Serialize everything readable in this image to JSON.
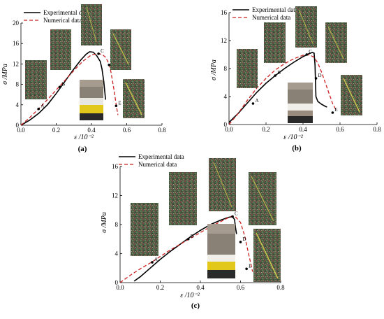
{
  "chart_data": [
    {
      "type": "line",
      "panel_label": "(a)",
      "xlabel": "ε /10⁻²",
      "ylabel": "σ /MPa",
      "xlim": [
        0,
        0.8
      ],
      "ylim": [
        0,
        20
      ],
      "x_ticks": [
        "0.0",
        "0.2",
        "0.4",
        "0.6",
        "0.8"
      ],
      "y_ticks": [
        "0",
        "4",
        "8",
        "12",
        "16",
        "20"
      ],
      "legend": "top-left",
      "series": [
        {
          "name": "Experimental data",
          "color": "#000000",
          "style": "solid",
          "x": [
            0.0,
            0.05,
            0.1,
            0.15,
            0.2,
            0.25,
            0.3,
            0.34,
            0.37,
            0.39,
            0.41,
            0.43,
            0.45,
            0.46,
            0.47,
            0.48
          ],
          "y": [
            0.0,
            1.0,
            2.3,
            4.0,
            6.2,
            8.6,
            11.0,
            12.8,
            13.9,
            14.4,
            14.3,
            13.6,
            12.5,
            11.0,
            8.5,
            5.0
          ]
        },
        {
          "name": "Numerical data",
          "color": "#cc2222",
          "style": "dashed",
          "x": [
            0.0,
            0.05,
            0.1,
            0.15,
            0.2,
            0.25,
            0.3,
            0.35,
            0.4,
            0.44,
            0.46,
            0.48,
            0.5,
            0.51,
            0.52,
            0.53,
            0.54,
            0.55
          ],
          "y": [
            0.0,
            1.5,
            3.2,
            5.0,
            6.9,
            8.8,
            10.7,
            12.5,
            13.8,
            14.0,
            13.9,
            13.3,
            12.0,
            10.5,
            8.5,
            6.5,
            4.0,
            2.0
          ]
        }
      ],
      "points": [
        {
          "label": "A",
          "x": 0.1,
          "y": 3.2
        },
        {
          "label": "B",
          "x": 0.22,
          "y": 7.5
        },
        {
          "label": "C",
          "x": 0.44,
          "y": 14.0
        },
        {
          "label": "D",
          "x": 0.5,
          "y": 11.8
        },
        {
          "label": "E",
          "x": 0.54,
          "y": 3.8
        }
      ]
    },
    {
      "type": "line",
      "panel_label": "(b)",
      "xlabel": "ε /10⁻²",
      "ylabel": "σ /MPa",
      "xlim": [
        0,
        0.8
      ],
      "ylim": [
        0,
        16
      ],
      "x_ticks": [
        "0.0",
        "0.2",
        "0.4",
        "0.6",
        "0.8"
      ],
      "y_ticks": [
        "0",
        "4",
        "8",
        "12",
        "16"
      ],
      "legend": "top-left",
      "series": [
        {
          "name": "Experimental data",
          "color": "#000000",
          "style": "solid",
          "x": [
            0.0,
            0.05,
            0.1,
            0.15,
            0.2,
            0.25,
            0.3,
            0.35,
            0.4,
            0.43,
            0.45,
            0.46,
            0.465,
            0.47,
            0.48,
            0.5,
            0.52,
            0.53
          ],
          "y": [
            0.3,
            1.6,
            3.1,
            4.6,
            5.9,
            7.0,
            8.0,
            8.9,
            9.7,
            10.1,
            10.3,
            10.2,
            8.5,
            4.0,
            3.3,
            2.9,
            2.6,
            2.5
          ]
        },
        {
          "name": "Numerical data",
          "color": "#cc2222",
          "style": "dashed",
          "x": [
            0.0,
            0.05,
            0.1,
            0.15,
            0.2,
            0.25,
            0.3,
            0.35,
            0.4,
            0.42,
            0.44,
            0.46,
            0.48,
            0.5,
            0.52,
            0.54,
            0.56,
            0.58
          ],
          "y": [
            0.0,
            1.6,
            3.5,
            5.2,
            6.6,
            7.8,
            8.7,
            9.4,
            9.9,
            10.0,
            9.9,
            9.6,
            8.8,
            7.5,
            6.0,
            4.5,
            3.0,
            2.0
          ]
        }
      ],
      "points": [
        {
          "label": "A",
          "x": 0.13,
          "y": 3.0
        },
        {
          "label": "B",
          "x": 0.25,
          "y": 7.0
        },
        {
          "label": "C",
          "x": 0.42,
          "y": 10.0
        },
        {
          "label": "D",
          "x": 0.47,
          "y": 6.6
        },
        {
          "label": "E",
          "x": 0.56,
          "y": 1.7
        }
      ]
    },
    {
      "type": "line",
      "panel_label": "(c)",
      "xlabel": "ε /10⁻²",
      "ylabel": "σ /MPa",
      "xlim": [
        0,
        0.8
      ],
      "ylim": [
        0,
        16
      ],
      "x_ticks": [
        "0.0",
        "0.2",
        "0.4",
        "0.6",
        "0.8"
      ],
      "y_ticks": [
        "0",
        "4",
        "8",
        "12",
        "16"
      ],
      "legend": "top-left",
      "series": [
        {
          "name": "Experimental data",
          "color": "#000000",
          "style": "solid",
          "x": [
            0.07,
            0.1,
            0.15,
            0.2,
            0.25,
            0.3,
            0.35,
            0.4,
            0.45,
            0.5,
            0.54,
            0.56,
            0.57,
            0.575,
            0.58
          ],
          "y": [
            0.2,
            0.8,
            2.0,
            3.2,
            4.3,
            5.3,
            6.3,
            7.2,
            8.0,
            8.6,
            9.0,
            9.1,
            8.7,
            7.6,
            6.7
          ]
        },
        {
          "name": "Numerical data",
          "color": "#cc2222",
          "style": "dashed",
          "x": [
            0.0,
            0.05,
            0.1,
            0.15,
            0.2,
            0.25,
            0.3,
            0.35,
            0.4,
            0.45,
            0.5,
            0.55,
            0.57,
            0.6,
            0.62,
            0.64,
            0.66
          ],
          "y": [
            0.0,
            1.0,
            1.9,
            2.7,
            3.6,
            4.5,
            5.3,
            6.1,
            6.9,
            7.7,
            8.4,
            9.1,
            9.2,
            8.3,
            6.5,
            4.0,
            1.5
          ]
        }
      ],
      "points": [
        {
          "label": "A",
          "x": 0.16,
          "y": 2.8
        },
        {
          "label": "B",
          "x": 0.34,
          "y": 6.0
        },
        {
          "label": "C",
          "x": 0.56,
          "y": 9.1
        },
        {
          "label": "D",
          "x": 0.6,
          "y": 5.6
        },
        {
          "label": "E",
          "x": 0.63,
          "y": 1.9
        }
      ]
    }
  ]
}
